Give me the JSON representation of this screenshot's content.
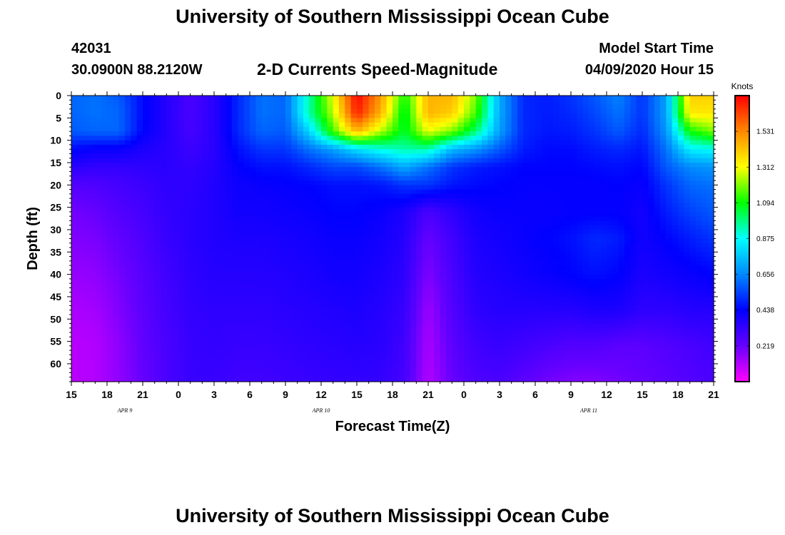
{
  "header": {
    "title": "University of Southern Mississippi Ocean Cube",
    "station_id": "42031",
    "station_coords": "30.0900N 88.2120W",
    "model_label": "Model Start Time",
    "model_time": "04/09/2020 Hour 15"
  },
  "footer": {
    "title": "University of Southern Mississippi Ocean Cube"
  },
  "chart_data": {
    "type": "heatmap",
    "title": "2-D Currents Speed-Magnitude",
    "xlabel": "Forecast Time(Z)",
    "ylabel": "Depth (ft)",
    "x_tick_labels": [
      "15",
      "18",
      "21",
      "0",
      "3",
      "6",
      "9",
      "12",
      "15",
      "18",
      "21",
      "0",
      "3",
      "6",
      "9",
      "12",
      "15",
      "18",
      "21"
    ],
    "x_hours": [
      0,
      3,
      6,
      9,
      12,
      15,
      18,
      21,
      24,
      27,
      30,
      33,
      36,
      39,
      42,
      45,
      48,
      51,
      54
    ],
    "date_labels": [
      {
        "text": "APR 9",
        "hour": 4.5
      },
      {
        "text": "APR 10",
        "hour": 21
      },
      {
        "text": "APR 11",
        "hour": 43.5
      }
    ],
    "y_tick_labels": [
      "0",
      "5",
      "10",
      "15",
      "20",
      "25",
      "30",
      "35",
      "40",
      "45",
      "50",
      "55",
      "60"
    ],
    "y_ticks": [
      0,
      5,
      10,
      15,
      20,
      25,
      30,
      35,
      40,
      45,
      50,
      55,
      60
    ],
    "xlim": [
      0,
      54
    ],
    "ylim": [
      0,
      64
    ],
    "y_inverted": true,
    "colorbar": {
      "title": "Knots",
      "ticks": [
        "1.531",
        "1.312",
        "1.094",
        "0.875",
        "0.656",
        "0.438",
        "0.219"
      ],
      "tick_values": [
        1.531,
        1.312,
        1.094,
        0.875,
        0.656,
        0.438,
        0.219
      ],
      "range": [
        0,
        1.75
      ],
      "colors": [
        "#ff00ff",
        "#6600ff",
        "#0000ff",
        "#0088ff",
        "#00ffff",
        "#00ff00",
        "#ffff00",
        "#ff8800",
        "#ff0000"
      ]
    },
    "grid_hours": [
      0,
      2,
      4,
      6,
      8,
      10,
      12,
      14,
      16,
      18,
      20,
      22,
      24,
      26,
      28,
      30,
      32,
      34,
      36,
      38,
      40,
      42,
      44,
      46,
      48,
      50,
      52,
      54
    ],
    "grid_depths": [
      0,
      4,
      8,
      12,
      16,
      20,
      26,
      32,
      40,
      48,
      56,
      64
    ],
    "values": [
      [
        0.6,
        0.62,
        0.58,
        0.45,
        0.36,
        0.28,
        0.35,
        0.5,
        0.62,
        0.6,
        0.95,
        1.3,
        1.75,
        1.5,
        1.1,
        1.45,
        1.45,
        1.2,
        0.72,
        0.5,
        0.48,
        0.52,
        0.58,
        0.65,
        0.52,
        0.7,
        1.4,
        1.4
      ],
      [
        0.6,
        0.62,
        0.6,
        0.45,
        0.36,
        0.28,
        0.35,
        0.5,
        0.62,
        0.6,
        0.95,
        1.25,
        1.7,
        1.45,
        1.05,
        1.45,
        1.4,
        1.15,
        0.72,
        0.5,
        0.48,
        0.5,
        0.55,
        0.62,
        0.52,
        0.7,
        1.35,
        1.35
      ],
      [
        0.58,
        0.6,
        0.6,
        0.44,
        0.36,
        0.29,
        0.35,
        0.5,
        0.6,
        0.58,
        0.8,
        1.15,
        1.45,
        1.25,
        1.05,
        1.3,
        1.2,
        1.0,
        0.7,
        0.5,
        0.47,
        0.48,
        0.52,
        0.58,
        0.5,
        0.68,
        1.1,
        1.2
      ],
      [
        0.45,
        0.42,
        0.42,
        0.38,
        0.35,
        0.31,
        0.35,
        0.46,
        0.52,
        0.52,
        0.62,
        0.7,
        0.82,
        0.9,
        0.95,
        0.95,
        0.75,
        0.68,
        0.58,
        0.48,
        0.45,
        0.45,
        0.48,
        0.5,
        0.47,
        0.62,
        0.85,
        0.88
      ],
      [
        0.35,
        0.33,
        0.33,
        0.34,
        0.35,
        0.33,
        0.36,
        0.43,
        0.46,
        0.46,
        0.5,
        0.55,
        0.55,
        0.62,
        0.72,
        0.62,
        0.52,
        0.48,
        0.46,
        0.44,
        0.44,
        0.44,
        0.45,
        0.46,
        0.44,
        0.58,
        0.66,
        0.68
      ],
      [
        0.26,
        0.27,
        0.29,
        0.31,
        0.34,
        0.34,
        0.37,
        0.41,
        0.42,
        0.43,
        0.44,
        0.46,
        0.46,
        0.47,
        0.52,
        0.52,
        0.47,
        0.45,
        0.44,
        0.43,
        0.43,
        0.43,
        0.43,
        0.44,
        0.42,
        0.52,
        0.6,
        0.62
      ],
      [
        0.2,
        0.22,
        0.26,
        0.29,
        0.33,
        0.35,
        0.37,
        0.4,
        0.4,
        0.41,
        0.42,
        0.44,
        0.44,
        0.42,
        0.38,
        0.28,
        0.34,
        0.4,
        0.42,
        0.42,
        0.42,
        0.43,
        0.43,
        0.43,
        0.4,
        0.48,
        0.54,
        0.58
      ],
      [
        0.18,
        0.19,
        0.23,
        0.27,
        0.32,
        0.35,
        0.37,
        0.38,
        0.38,
        0.39,
        0.4,
        0.42,
        0.42,
        0.4,
        0.36,
        0.22,
        0.3,
        0.38,
        0.4,
        0.42,
        0.44,
        0.46,
        0.5,
        0.48,
        0.4,
        0.44,
        0.48,
        0.52
      ],
      [
        0.15,
        0.16,
        0.2,
        0.25,
        0.3,
        0.34,
        0.36,
        0.36,
        0.36,
        0.37,
        0.38,
        0.4,
        0.4,
        0.38,
        0.34,
        0.18,
        0.28,
        0.36,
        0.38,
        0.4,
        0.42,
        0.44,
        0.46,
        0.44,
        0.38,
        0.4,
        0.42,
        0.44
      ],
      [
        0.12,
        0.13,
        0.18,
        0.24,
        0.29,
        0.33,
        0.34,
        0.34,
        0.34,
        0.35,
        0.36,
        0.37,
        0.38,
        0.36,
        0.32,
        0.14,
        0.26,
        0.34,
        0.36,
        0.36,
        0.36,
        0.36,
        0.38,
        0.38,
        0.34,
        0.34,
        0.36,
        0.36
      ],
      [
        0.1,
        0.11,
        0.16,
        0.23,
        0.28,
        0.32,
        0.33,
        0.32,
        0.32,
        0.33,
        0.34,
        0.35,
        0.36,
        0.35,
        0.3,
        0.12,
        0.24,
        0.3,
        0.32,
        0.3,
        0.28,
        0.26,
        0.26,
        0.24,
        0.24,
        0.26,
        0.28,
        0.3
      ],
      [
        0.1,
        0.11,
        0.16,
        0.22,
        0.28,
        0.32,
        0.32,
        0.3,
        0.3,
        0.31,
        0.32,
        0.33,
        0.33,
        0.33,
        0.29,
        0.11,
        0.22,
        0.27,
        0.28,
        0.24,
        0.2,
        0.18,
        0.18,
        0.2,
        0.22,
        0.24,
        0.26,
        0.28
      ]
    ]
  }
}
